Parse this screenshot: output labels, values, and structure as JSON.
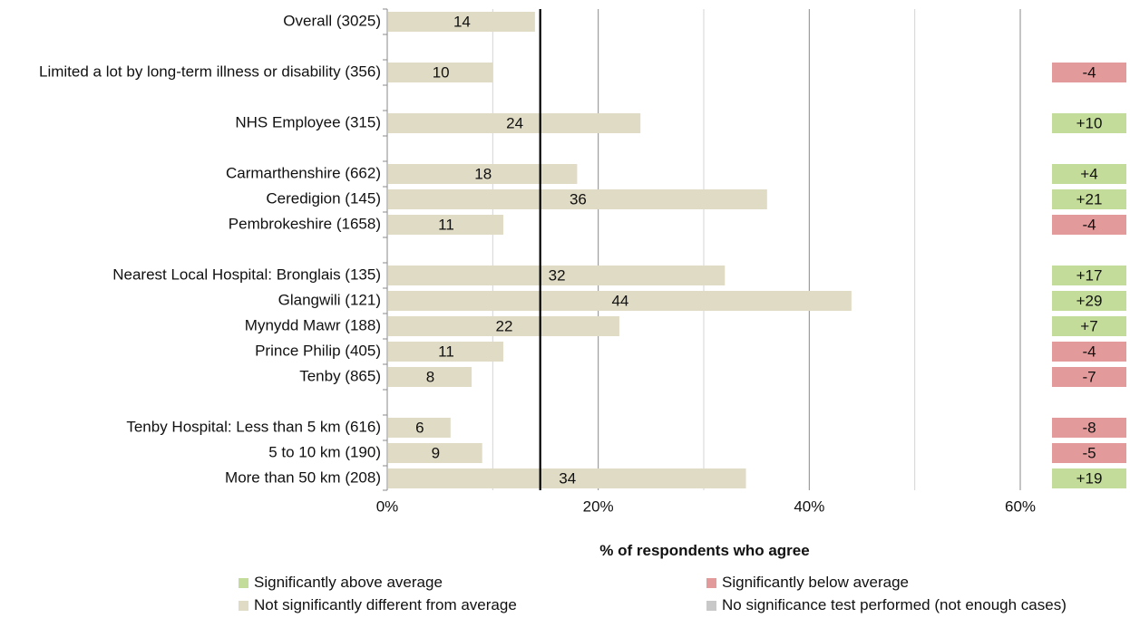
{
  "chart_data": {
    "type": "bar",
    "orientation": "horizontal",
    "xlabel": "% of respondents who agree",
    "xlim": [
      0,
      60
    ],
    "x_ticks": [
      "0%",
      "20%",
      "40%",
      "60%"
    ],
    "grid": "vertical gridlines every 10%",
    "reference_line": {
      "value": 14.5
    },
    "categories": [
      "Overall (3025)",
      "Limited a lot by long-term illness or disability (356)",
      "NHS Employee (315)",
      "Carmarthenshire (662)",
      "Ceredigion (145)",
      "Pembrokeshire (1658)",
      "Nearest Local Hospital: Bronglais (135)",
      "Glangwili (121)",
      "Mynydd Mawr (188)",
      "Prince Philip (405)",
      "Tenby (865)",
      "Tenby Hospital: Less than 5 km (616)",
      "5 to 10 km (190)",
      "More than 50 km (208)"
    ],
    "values": [
      14,
      10,
      24,
      18,
      36,
      11,
      32,
      44,
      22,
      11,
      8,
      6,
      9,
      34
    ],
    "value_labels": [
      "14",
      "10",
      "24",
      "18",
      "36",
      "11",
      "32",
      "44",
      "22",
      "11",
      "8",
      "6",
      "9",
      "34"
    ],
    "differences": [
      "",
      "-4",
      "+10",
      "+4",
      "+21",
      "-4",
      "+17",
      "+29",
      "+7",
      "-4",
      "-7",
      "-8",
      "-5",
      "+19"
    ],
    "significance": [
      "none",
      "below",
      "above",
      "above",
      "above",
      "below",
      "above",
      "above",
      "above",
      "below",
      "below",
      "below",
      "below",
      "above"
    ],
    "legend_position": "bottom",
    "legend": [
      {
        "label": "Significantly above average",
        "key": "above"
      },
      {
        "label": "Significantly below average",
        "key": "below"
      },
      {
        "label": "Not significantly different from average",
        "key": "not_sig"
      },
      {
        "label": "No significance test performed (not enough cases)",
        "key": "no_test"
      }
    ],
    "colors": {
      "bar": "#e0dbc5",
      "above": "#c4dc9a",
      "below": "#e39a9a",
      "not_sig": "#e0dbc5",
      "no_test": "#c8c8c8",
      "reference_line": "#000000",
      "gridline": "#d4d4d4"
    }
  }
}
